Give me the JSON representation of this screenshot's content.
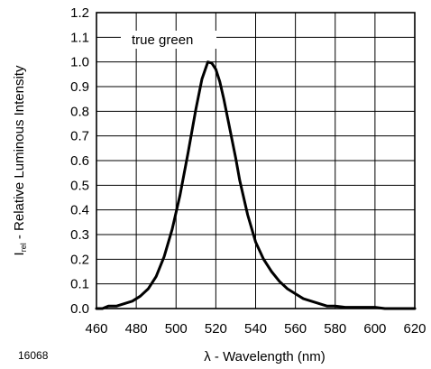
{
  "chart_data": {
    "type": "line",
    "xlabel": "λ - Wavelength (nm)",
    "ylabel_main": "I",
    "ylabel_sub": "rel",
    "ylabel_rest": " - Relative Luminous Intensity",
    "figure_code": "16068",
    "xlim": [
      460,
      620
    ],
    "ylim": [
      0.0,
      1.2
    ],
    "x_ticks": [
      460,
      480,
      500,
      520,
      540,
      560,
      580,
      600,
      620
    ],
    "x_tick_labels": [
      "460",
      "480",
      "500",
      "520",
      "540",
      "560",
      "580",
      "600",
      "620"
    ],
    "y_ticks": [
      0.0,
      0.1,
      0.2,
      0.3,
      0.4,
      0.5,
      0.6,
      0.7,
      0.8,
      0.9,
      1.0,
      1.1,
      1.2
    ],
    "y_tick_labels": [
      "0.0",
      "0.1",
      "0.2",
      "0.3",
      "0.4",
      "0.5",
      "0.6",
      "0.7",
      "0.8",
      "0.9",
      "1.0",
      "1.1",
      "1.2"
    ],
    "grid": true,
    "legend_position": "top-left",
    "series": [
      {
        "name": "true green",
        "color": "#000000",
        "x": [
          460,
          463,
          466,
          470,
          474,
          478,
          482,
          486,
          490,
          494,
          498,
          502,
          506,
          510,
          513,
          516,
          518,
          520,
          522,
          524,
          526,
          528,
          530,
          532,
          536,
          540,
          544,
          548,
          552,
          556,
          560,
          564,
          568,
          572,
          576,
          580,
          585,
          590,
          595,
          600,
          605,
          610,
          615,
          620
        ],
        "y": [
          0.0,
          0.0,
          0.01,
          0.01,
          0.02,
          0.03,
          0.05,
          0.08,
          0.13,
          0.21,
          0.32,
          0.46,
          0.63,
          0.81,
          0.93,
          1.0,
          0.995,
          0.97,
          0.92,
          0.85,
          0.77,
          0.69,
          0.61,
          0.52,
          0.38,
          0.27,
          0.2,
          0.15,
          0.11,
          0.08,
          0.06,
          0.04,
          0.03,
          0.02,
          0.01,
          0.01,
          0.005,
          0.005,
          0.005,
          0.005,
          0.0,
          0.0,
          0.0,
          0.0
        ]
      }
    ]
  }
}
